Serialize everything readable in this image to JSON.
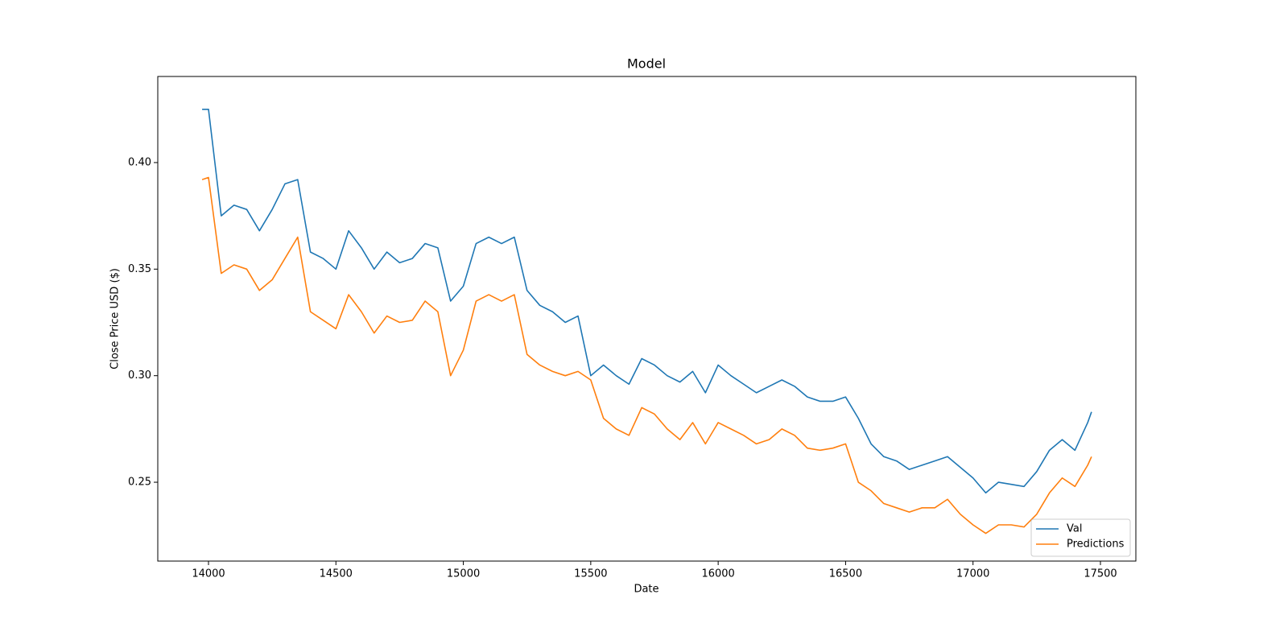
{
  "chart_data": {
    "type": "line",
    "title": "Model",
    "x_label": "Date",
    "y_label": "Close Price USD ($)",
    "x": [
      13975,
      14000,
      14050,
      14100,
      14150,
      14200,
      14250,
      14300,
      14350,
      14400,
      14450,
      14500,
      14550,
      14600,
      14650,
      14700,
      14750,
      14800,
      14850,
      14900,
      14950,
      15000,
      15050,
      15100,
      15150,
      15200,
      15250,
      15300,
      15350,
      15400,
      15450,
      15500,
      15550,
      15600,
      15650,
      15700,
      15750,
      15800,
      15850,
      15900,
      15950,
      16000,
      16050,
      16100,
      16150,
      16200,
      16250,
      16300,
      16350,
      16400,
      16450,
      16500,
      16550,
      16600,
      16650,
      16700,
      16750,
      16800,
      16850,
      16900,
      16950,
      17000,
      17050,
      17100,
      17150,
      17200,
      17250,
      17300,
      17350,
      17400,
      17450,
      17465
    ],
    "series": [
      {
        "name": "Val",
        "color": "#1f77b4",
        "values": [
          0.425,
          0.425,
          0.375,
          0.38,
          0.378,
          0.368,
          0.378,
          0.39,
          0.392,
          0.358,
          0.355,
          0.35,
          0.368,
          0.36,
          0.35,
          0.358,
          0.353,
          0.355,
          0.362,
          0.36,
          0.335,
          0.342,
          0.362,
          0.365,
          0.362,
          0.365,
          0.34,
          0.333,
          0.33,
          0.325,
          0.328,
          0.3,
          0.305,
          0.3,
          0.296,
          0.308,
          0.305,
          0.3,
          0.297,
          0.302,
          0.292,
          0.305,
          0.3,
          0.296,
          0.292,
          0.295,
          0.298,
          0.295,
          0.29,
          0.288,
          0.288,
          0.29,
          0.28,
          0.268,
          0.262,
          0.26,
          0.256,
          0.258,
          0.26,
          0.262,
          0.257,
          0.252,
          0.245,
          0.25,
          0.249,
          0.248,
          0.255,
          0.265,
          0.27,
          0.265,
          0.278,
          0.283
        ]
      },
      {
        "name": "Predictions",
        "color": "#ff7f0e",
        "values": [
          0.392,
          0.393,
          0.348,
          0.352,
          0.35,
          0.34,
          0.345,
          0.355,
          0.365,
          0.33,
          0.326,
          0.322,
          0.338,
          0.33,
          0.32,
          0.328,
          0.325,
          0.326,
          0.335,
          0.33,
          0.3,
          0.312,
          0.335,
          0.338,
          0.335,
          0.338,
          0.31,
          0.305,
          0.302,
          0.3,
          0.302,
          0.298,
          0.28,
          0.275,
          0.272,
          0.285,
          0.282,
          0.275,
          0.27,
          0.278,
          0.268,
          0.278,
          0.275,
          0.272,
          0.268,
          0.27,
          0.275,
          0.272,
          0.266,
          0.265,
          0.266,
          0.268,
          0.25,
          0.246,
          0.24,
          0.238,
          0.236,
          0.238,
          0.238,
          0.242,
          0.235,
          0.23,
          0.226,
          0.23,
          0.23,
          0.229,
          0.235,
          0.245,
          0.252,
          0.248,
          0.258,
          0.262
        ]
      }
    ],
    "xlim": [
      13801,
      17639
    ],
    "ylim": [
      0.213,
      0.4404
    ],
    "xticks": [
      14000,
      14500,
      15000,
      15500,
      16000,
      16500,
      17000,
      17500
    ],
    "yticks": [
      0.25,
      {
        "value": 0.3,
        "label": "0.30"
      },
      0.35,
      {
        "value": 0.4,
        "label": "0.40"
      }
    ],
    "grid": false,
    "legend_position": "lower right"
  }
}
